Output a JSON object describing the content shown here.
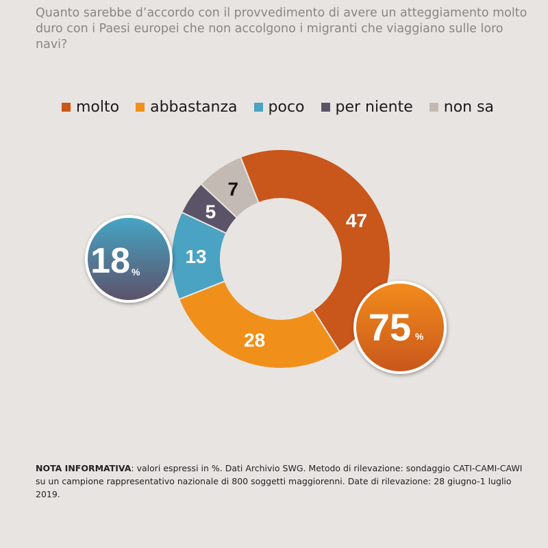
{
  "chart_data": {
    "type": "pie",
    "title": "Quanto sarebbe d’accordo con il provvedimento di avere un atteggiamento molto duro con i Paesi europei che non accolgono i migranti che viaggiano sulle loro navi?",
    "slices": [
      {
        "label": "molto",
        "value": 47,
        "color": "#c9561a"
      },
      {
        "label": "abbastanza",
        "value": 28,
        "color": "#f0901a"
      },
      {
        "label": "poco",
        "value": 13,
        "color": "#4aa3c2"
      },
      {
        "label": "per niente",
        "value": 5,
        "color": "#5b5468"
      },
      {
        "label": "non sa",
        "value": 7,
        "color": "#c3bab4"
      }
    ],
    "legend_position": "top",
    "annotations": [
      {
        "number": "75",
        "unit": "%"
      },
      {
        "number": "18",
        "unit": "%"
      }
    ]
  },
  "note": {
    "label": "NOTA INFORMATIVA",
    "text": ": valori espressi in %. Dati Archivio SWG. Metodo di rilevazione: sondaggio CATI-CAMI-CAWI su un campione rappresentativo nazionale di 800 soggetti maggiorenni. Date di rilevazione: 28 giugno-1 luglio 2019."
  }
}
